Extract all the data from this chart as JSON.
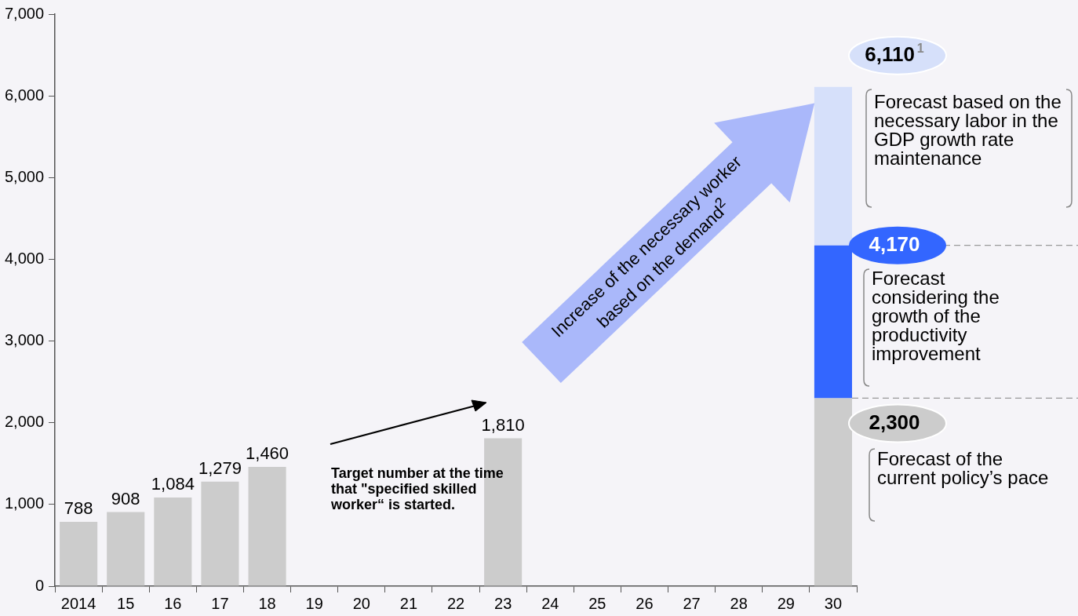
{
  "chart_data": {
    "type": "bar",
    "stacked": true,
    "grid": false,
    "legend": false,
    "categories": [
      "2014",
      "15",
      "16",
      "17",
      "18",
      "19",
      "20",
      "21",
      "22",
      "23",
      "24",
      "25",
      "26",
      "27",
      "28",
      "29",
      "30"
    ],
    "series": [
      {
        "color": "#cccccc",
        "values": [
          788,
          908,
          1084,
          1279,
          1460,
          null,
          null,
          null,
          null,
          1810,
          null,
          null,
          null,
          null,
          null,
          null,
          2300
        ],
        "value_labels": [
          "788",
          "908",
          "1,084",
          "1,279",
          "1,460",
          null,
          null,
          null,
          null,
          "1,810",
          null,
          null,
          null,
          null,
          null,
          null,
          null
        ]
      },
      {
        "color": "#3366ff",
        "values": [
          null,
          null,
          null,
          null,
          null,
          null,
          null,
          null,
          null,
          null,
          null,
          null,
          null,
          null,
          null,
          null,
          1870
        ]
      },
      {
        "color": "#d6e0fa",
        "values": [
          null,
          null,
          null,
          null,
          null,
          null,
          null,
          null,
          null,
          null,
          null,
          null,
          null,
          null,
          null,
          null,
          1940
        ]
      }
    ],
    "ylim": [
      0,
      7000
    ],
    "yticks": [
      {
        "value": 0,
        "label": "0"
      },
      {
        "value": 1000,
        "label": "1,000"
      },
      {
        "value": 2000,
        "label": "2,000"
      },
      {
        "value": 3000,
        "label": "3,000"
      },
      {
        "value": 4000,
        "label": "4,000"
      },
      {
        "value": 5000,
        "label": "5,000"
      },
      {
        "value": 6000,
        "label": "6,000"
      },
      {
        "value": 7000,
        "label": "7,000"
      }
    ],
    "annotations": [
      "Increase of the necessary worker based on the demand$^{2}$",
      "Target number at the time that \"specified skilled worker“ is started.",
      "Forecast based on the necessary labor in the GDP growth rate maintenance",
      "Forecast considering the growth of the productivity improvement",
      "Forecast of the current policy’s pace",
      {
        "text": "6,110$^{1}$",
        "x": "30",
        "y": 6110
      },
      {
        "text": "4,170",
        "x": "30",
        "y": 4170
      },
      {
        "text": "2,300",
        "x": "30",
        "y": 2300
      }
    ]
  }
}
